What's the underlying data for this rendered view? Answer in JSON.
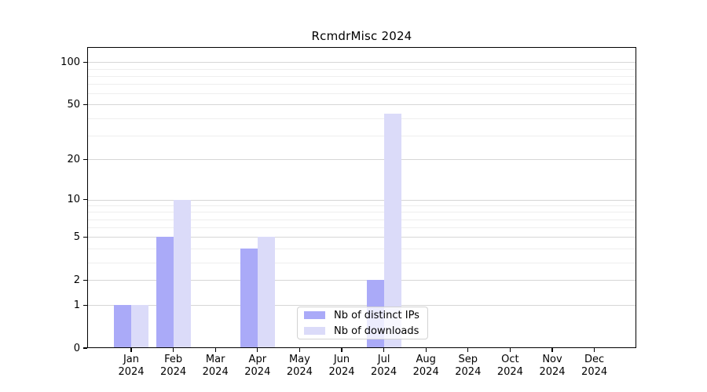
{
  "chart_data": {
    "type": "bar",
    "title": "RcmdrMisc 2024",
    "categories": [
      {
        "label": "Jan",
        "year": "2024"
      },
      {
        "label": "Feb",
        "year": "2024"
      },
      {
        "label": "Mar",
        "year": "2024"
      },
      {
        "label": "Apr",
        "year": "2024"
      },
      {
        "label": "May",
        "year": "2024"
      },
      {
        "label": "Jun",
        "year": "2024"
      },
      {
        "label": "Jul",
        "year": "2024"
      },
      {
        "label": "Aug",
        "year": "2024"
      },
      {
        "label": "Sep",
        "year": "2024"
      },
      {
        "label": "Oct",
        "year": "2024"
      },
      {
        "label": "Nov",
        "year": "2024"
      },
      {
        "label": "Dec",
        "year": "2024"
      }
    ],
    "series": [
      {
        "name": "Nb of distinct IPs",
        "color": "#aaaaf8",
        "values": [
          1,
          5,
          0,
          4,
          0,
          0,
          2,
          0,
          0,
          0,
          0,
          0
        ]
      },
      {
        "name": "Nb of downloads",
        "color": "#dbdbf9",
        "values": [
          1,
          10,
          0,
          5,
          0,
          0,
          43,
          0,
          0,
          0,
          0,
          0
        ]
      }
    ],
    "y_axis": {
      "scale": "log1p",
      "ticks": [
        0,
        1,
        2,
        5,
        10,
        20,
        50,
        100
      ],
      "minor_gridlines": [
        3,
        4,
        6,
        7,
        8,
        9,
        30,
        40,
        60,
        70,
        80,
        90
      ],
      "max": 128
    },
    "x_axis": {
      "tick_label_lines": 2
    },
    "grid": "horizontal-only",
    "legend_position": "bottom-center",
    "colors": {
      "major_grid": "#d6d6d6",
      "minor_grid": "#eeeeee",
      "axis": "#000000",
      "background": "#ffffff"
    }
  }
}
